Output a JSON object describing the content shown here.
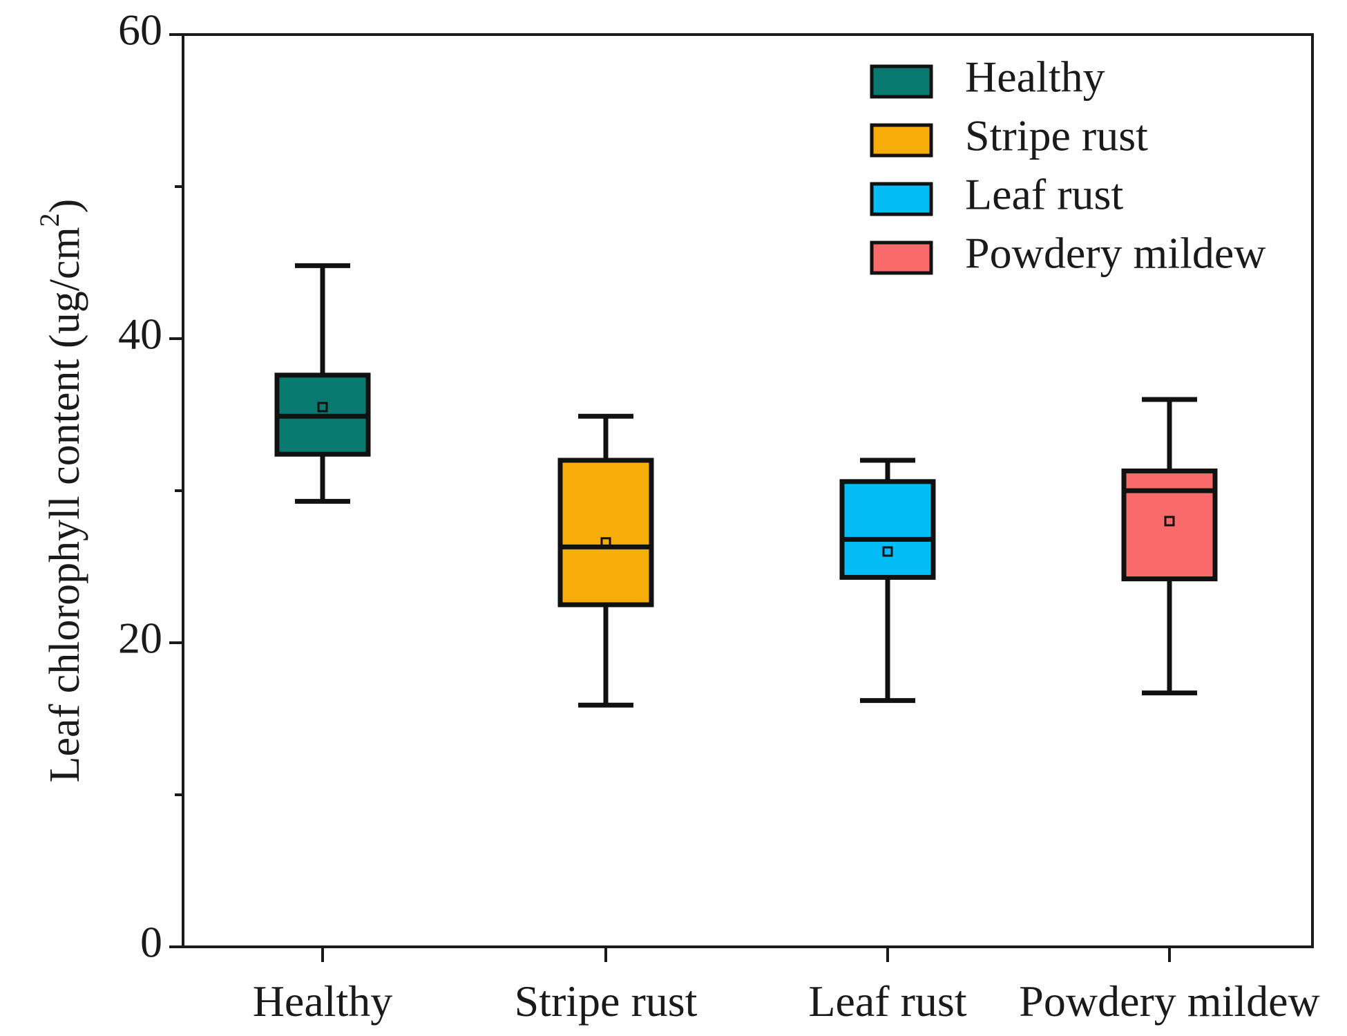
{
  "chart_data": {
    "type": "box",
    "title": "",
    "xlabel": "",
    "ylabel": "Leaf chlorophyll content (ug/cm²)",
    "ylabel_main": "Leaf chlorophyll content (ug/cm",
    "ylabel_sup": "2",
    "ylabel_close": ")",
    "ylim": [
      0,
      60
    ],
    "yticks": [
      0,
      20,
      40,
      60
    ],
    "yminor_ticks": [
      10,
      30,
      50
    ],
    "categories": [
      "Healthy",
      "Stripe rust",
      "Leaf rust",
      "Powdery mildew"
    ],
    "legend_position": "top-right",
    "series": [
      {
        "name": "Healthy",
        "color": "#087a70",
        "whisker_low": 29.3,
        "q1": 32.4,
        "median": 34.9,
        "q3": 37.6,
        "whisker_high": 44.8,
        "mean": 35.5
      },
      {
        "name": "Stripe rust",
        "color": "#f7ac08",
        "whisker_low": 15.9,
        "q1": 22.5,
        "median": 26.3,
        "q3": 32.0,
        "whisker_high": 34.9,
        "mean": 26.6
      },
      {
        "name": "Leaf rust",
        "color": "#04bdf7",
        "whisker_low": 16.2,
        "q1": 24.3,
        "median": 26.8,
        "q3": 30.6,
        "whisker_high": 32.0,
        "mean": 26.0
      },
      {
        "name": "Powdery mildew",
        "color": "#f96b6b",
        "whisker_low": 16.7,
        "q1": 24.2,
        "median": 30.0,
        "q3": 31.3,
        "whisker_high": 36.0,
        "mean": 28.0
      }
    ]
  }
}
